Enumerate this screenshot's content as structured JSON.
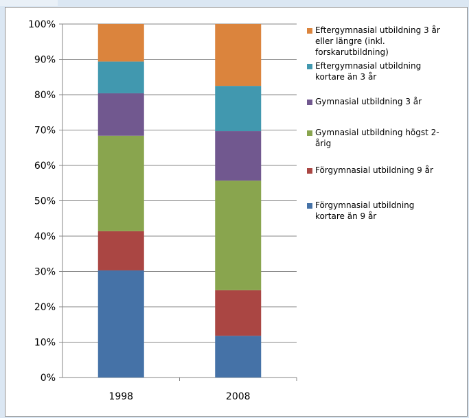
{
  "chart_data": {
    "type": "bar",
    "stacked": true,
    "categories": [
      "1998",
      "2008"
    ],
    "ylim": [
      0,
      100
    ],
    "y_ticks": [
      "0%",
      "10%",
      "20%",
      "30%",
      "40%",
      "50%",
      "60%",
      "70%",
      "80%",
      "90%",
      "100%"
    ],
    "grid": true,
    "legend_position": "right",
    "series": [
      {
        "name": "Förgymnasial utbildning kortare än 9 år",
        "values": [
          30.3,
          11.8
        ],
        "color": "#4572a7"
      },
      {
        "name": "Förgymnasial utbildning 9 år",
        "values": [
          11.1,
          12.9
        ],
        "color": "#aa4643"
      },
      {
        "name": "Gymnasial utbildning högst 2-årig",
        "values": [
          27.0,
          31.0
        ],
        "color": "#89a54e"
      },
      {
        "name": "Gymnasial utbildning 3 år",
        "values": [
          12.0,
          14.0
        ],
        "color": "#71588f"
      },
      {
        "name": "Eftergymnasial utbildning kortare än 3 år",
        "values": [
          9.0,
          12.8
        ],
        "color": "#4198af"
      },
      {
        "name": "Eftergymnasial utbildning 3 år eller längre (inkl. forskarutbildning)",
        "values": [
          10.6,
          17.5
        ],
        "color": "#db843d"
      }
    ],
    "legend_lines": [
      [
        "Eftergymnasial utbildning 3 år",
        "eller längre (inkl.",
        "forskarutbildning)"
      ],
      [
        "Eftergymnasial utbildning",
        "kortare än 3 år"
      ],
      [
        "Gymnasial utbildning 3 år"
      ],
      [
        "Gymnasial utbildning högst 2-",
        "årig"
      ],
      [
        "Förgymnasial utbildning 9 år"
      ],
      [
        "Förgymnasial utbildning",
        "kortare än 9 år"
      ]
    ]
  }
}
